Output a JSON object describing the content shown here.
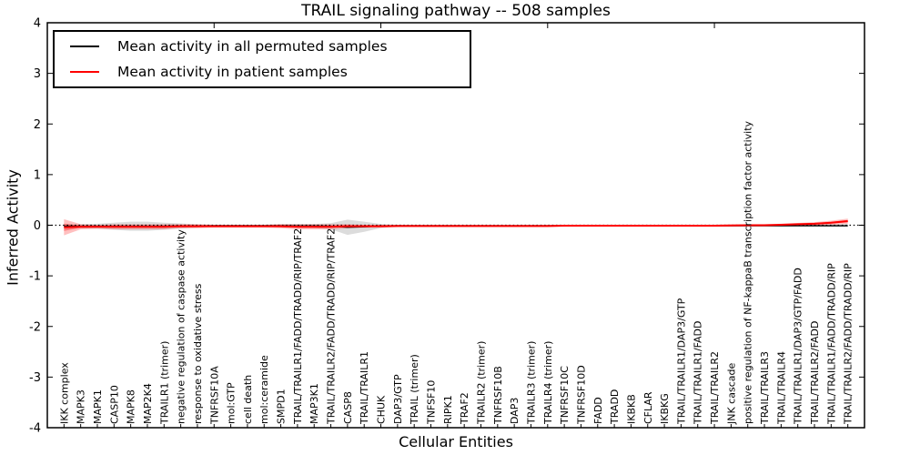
{
  "title": "TRAIL signaling pathway -- 508 samples",
  "axes": {
    "ylabel": "Inferred Activity",
    "xlabel": "Cellular Entities",
    "yticks": [
      "4",
      "3",
      "2",
      "1",
      "0",
      "-1",
      "-2",
      "-3",
      "-4"
    ],
    "ylim": [
      -4,
      4
    ]
  },
  "legend": {
    "items": [
      {
        "label": "Mean activity in all permuted samples",
        "color": "#000000"
      },
      {
        "label": "Mean activity in patient samples",
        "color": "#ff0000"
      }
    ]
  },
  "chart_data": {
    "type": "line",
    "title": "TRAIL signaling pathway -- 508 samples",
    "xlabel": "Cellular Entities",
    "ylabel": "Inferred Activity",
    "ylim": [
      -4,
      4
    ],
    "zero_line": "dotted",
    "legend_position": "upper left",
    "categories": [
      "IKK complex",
      "MAPK3",
      "MAPK1",
      "CASP10",
      "MAPK8",
      "MAP2K4",
      "TRAILR1 (trimer)",
      "negative regulation of caspase activity",
      "response to oxidative stress",
      "TNFRSF10A",
      "mol:GTP",
      "cell death",
      "mol:ceramide",
      "SMPD1",
      "TRAIL/TRAILR1/FADD/TRADD/RIP/TRAF2",
      "MAP3K1",
      "TRAIL/TRAILR2/FADD/TRADD/RIP/TRAF2",
      "CASP8",
      "TRAIL/TRAILR1",
      "CHUK",
      "DAP3/GTP",
      "TRAIL (trimer)",
      "TNFSF10",
      "RIPK1",
      "TRAF2",
      "TRAILR2 (trimer)",
      "TNFRSF10B",
      "DAP3",
      "TRAILR3 (trimer)",
      "TRAILR4 (trimer)",
      "TNFRSF10C",
      "TNFRSF10D",
      "FADD",
      "TRADD",
      "IKBKB",
      "CFLAR",
      "IKBKG",
      "TRAIL/TRAILR1/DAP3/GTP",
      "TRAIL/TRAILR1/FADD",
      "TRAIL/TRAILR2",
      "JNK cascade",
      "positive regulation of NF-kappaB transcription factor activity",
      "TRAIL/TRAILR3",
      "TRAIL/TRAILR4",
      "TRAIL/TRAILR1/DAP3/GTP/FADD",
      "TRAIL/TRAILR2/FADD",
      "TRAIL/TRAILR1/FADD/TRADD/RIP",
      "TRAIL/TRAILR2/FADD/TRADD/RIP"
    ],
    "series": [
      {
        "name": "Mean activity in all permuted samples",
        "color": "#000000",
        "band_color": "rgba(80,80,80,0.20)",
        "values": [
          -0.02,
          -0.02,
          -0.02,
          -0.02,
          -0.02,
          -0.02,
          -0.02,
          -0.015,
          -0.015,
          -0.01,
          -0.01,
          -0.01,
          -0.01,
          -0.01,
          -0.015,
          -0.015,
          -0.02,
          -0.04,
          -0.03,
          -0.015,
          -0.01,
          -0.01,
          -0.01,
          -0.01,
          -0.01,
          -0.01,
          -0.01,
          -0.01,
          -0.01,
          -0.01,
          -0.01,
          -0.01,
          -0.01,
          -0.01,
          -0.01,
          -0.01,
          -0.01,
          -0.01,
          -0.01,
          -0.01,
          -0.01,
          -0.01,
          -0.01,
          -0.01,
          -0.01,
          -0.01,
          -0.01,
          -0.01
        ],
        "band_halfwidth": [
          0.04,
          0.04,
          0.05,
          0.07,
          0.09,
          0.09,
          0.07,
          0.05,
          0.03,
          0.02,
          0.02,
          0.02,
          0.02,
          0.03,
          0.04,
          0.04,
          0.06,
          0.15,
          0.1,
          0.04,
          0.02,
          0.015,
          0.015,
          0.015,
          0.015,
          0.015,
          0.015,
          0.015,
          0.015,
          0.015,
          0.015,
          0.015,
          0.015,
          0.015,
          0.015,
          0.015,
          0.015,
          0.015,
          0.015,
          0.015,
          0.015,
          0.015,
          0.015,
          0.015,
          0.015,
          0.02,
          0.025,
          0.03
        ]
      },
      {
        "name": "Mean activity in patient samples",
        "color": "#ff0000",
        "band_color": "rgba(255,0,0,0.25)",
        "values": [
          -0.04,
          -0.03,
          -0.03,
          -0.03,
          -0.03,
          -0.03,
          -0.03,
          -0.02,
          -0.02,
          -0.02,
          -0.02,
          -0.02,
          -0.02,
          -0.02,
          -0.03,
          -0.03,
          -0.03,
          -0.02,
          -0.02,
          -0.02,
          -0.015,
          -0.015,
          -0.015,
          -0.015,
          -0.015,
          -0.015,
          -0.015,
          -0.015,
          -0.015,
          -0.015,
          -0.01,
          -0.01,
          -0.01,
          -0.01,
          -0.01,
          -0.01,
          -0.01,
          -0.01,
          -0.01,
          -0.01,
          -0.005,
          0.0,
          0.0,
          0.01,
          0.02,
          0.03,
          0.05,
          0.08
        ],
        "band_halfwidth": [
          0.16,
          0.05,
          0.04,
          0.05,
          0.05,
          0.05,
          0.05,
          0.04,
          0.04,
          0.03,
          0.03,
          0.03,
          0.03,
          0.04,
          0.05,
          0.05,
          0.05,
          0.04,
          0.03,
          0.03,
          0.02,
          0.02,
          0.02,
          0.02,
          0.02,
          0.02,
          0.02,
          0.02,
          0.02,
          0.02,
          0.015,
          0.015,
          0.015,
          0.015,
          0.015,
          0.015,
          0.015,
          0.015,
          0.02,
          0.02,
          0.02,
          0.02,
          0.02,
          0.02,
          0.025,
          0.03,
          0.04,
          0.05
        ]
      }
    ]
  }
}
